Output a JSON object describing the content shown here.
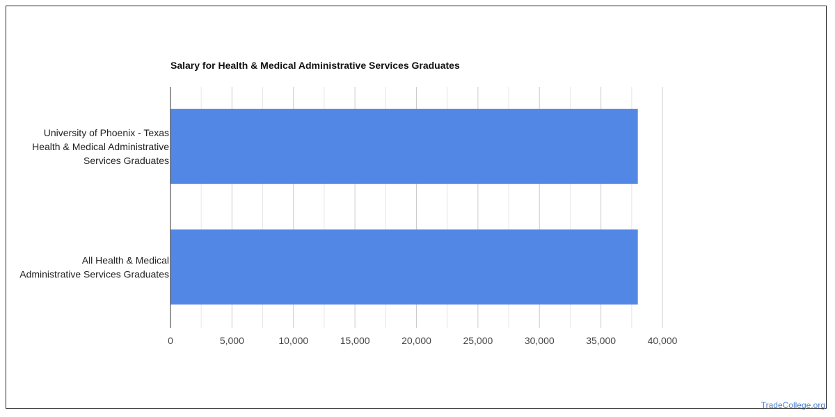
{
  "chart_data": {
    "type": "bar",
    "orientation": "horizontal",
    "title": "Salary for Health & Medical Administrative Services Graduates",
    "categories": [
      [
        "University of Phoenix - Texas",
        "Health & Medical Administrative",
        "Services Graduates"
      ],
      [
        "All Health & Medical",
        "Administrative Services Graduates"
      ]
    ],
    "values": [
      38000,
      38000
    ],
    "xlim": [
      0,
      40000
    ],
    "xticks": [
      0,
      5000,
      10000,
      15000,
      20000,
      25000,
      30000,
      35000,
      40000
    ],
    "xtick_labels": [
      "0",
      "5,000",
      "10,000",
      "15,000",
      "20,000",
      "25,000",
      "30,000",
      "35,000",
      "40,000"
    ],
    "minor_gridlines": true,
    "legend": "none",
    "colors": {
      "bar": "#5387e5",
      "grid": "#cccccc",
      "minor_grid": "#e6e6e6",
      "axis": "#333333"
    }
  },
  "watermark": "TradeCollege.org"
}
